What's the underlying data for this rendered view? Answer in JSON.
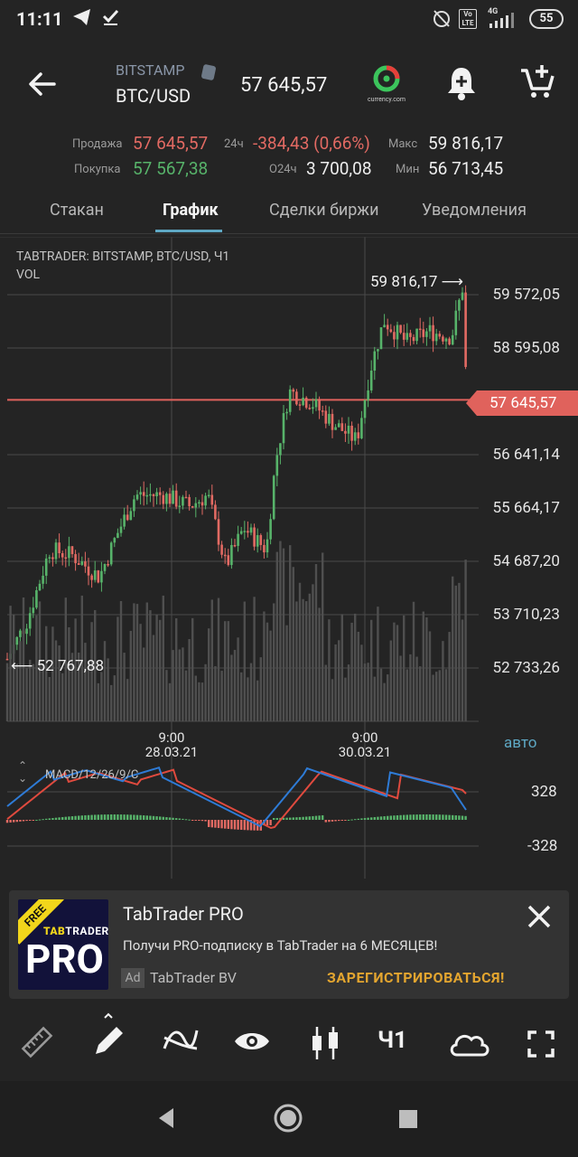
{
  "status_bar": {
    "time": "11:11",
    "network": "4G",
    "volte": "Vo LTE",
    "battery": "55"
  },
  "header": {
    "exchange": "BITSTAMP",
    "pair": "BTC/USD",
    "price": "57 645,57",
    "logo_text": "currency.com"
  },
  "stats": {
    "sell_label": "Продажа",
    "sell_value": "57 645,57",
    "buy_label": "Покупка",
    "buy_value": "57 567,38",
    "change_label": "24ч",
    "change_value": "-384,43 (0,66%)",
    "volume_label": "О24ч",
    "volume_value": "3 700,08",
    "max_label": "Макс",
    "max_value": "59 816,17",
    "min_label": "Мин",
    "min_value": "56 713,45"
  },
  "tabs": [
    {
      "label": "Стакан",
      "active": false
    },
    {
      "label": "График",
      "active": true
    },
    {
      "label": "Сделки биржи",
      "active": false
    },
    {
      "label": "Уведомления",
      "active": false
    }
  ],
  "chart": {
    "title": "TABTRADER: BITSTAMP, BTC/USD, Ч1",
    "volume_label": "VOL",
    "price_axis": [
      "59 572,05",
      "58 595,08",
      "56 641,14",
      "55 664,17",
      "54 687,20",
      "53 710,23",
      "52 733,26"
    ],
    "current_price": "57 645,57",
    "high_marker": "59 816,17",
    "low_marker": "52 767,88",
    "time_labels": [
      {
        "time": "9:00",
        "date": "28.03.21"
      },
      {
        "time": "9:00",
        "date": "30.03.21"
      }
    ],
    "auto_label": "авто",
    "macd_label": "MACD/12/26/9/C",
    "macd_axis": [
      "328",
      "-328"
    ],
    "colors": {
      "up": "#57b36a",
      "down": "#e26a63",
      "macd": "#2e7bd6",
      "signal": "#e04a3e",
      "price_line": "#e0625c"
    }
  },
  "ad": {
    "title": "TabTrader PRO",
    "description": "Получи PRO-подписку в TabTrader на 6 МЕСЯЦЕВ!",
    "badge": "Ad",
    "advertiser": "TabTrader BV",
    "cta": "ЗАРЕГИСТРИРОВАТЬСЯ!",
    "logo_free": "FREE",
    "logo_brand_a": "TAB",
    "logo_brand_b": "TRADER",
    "logo_pro": "PRO"
  },
  "toolbar": {
    "interval_label": "Ч1",
    "icons": [
      "ruler-icon",
      "pencil-icon",
      "indicators-icon",
      "eye-icon",
      "candles-icon",
      "interval-button",
      "cloud-icon",
      "fullscreen-icon"
    ]
  }
}
